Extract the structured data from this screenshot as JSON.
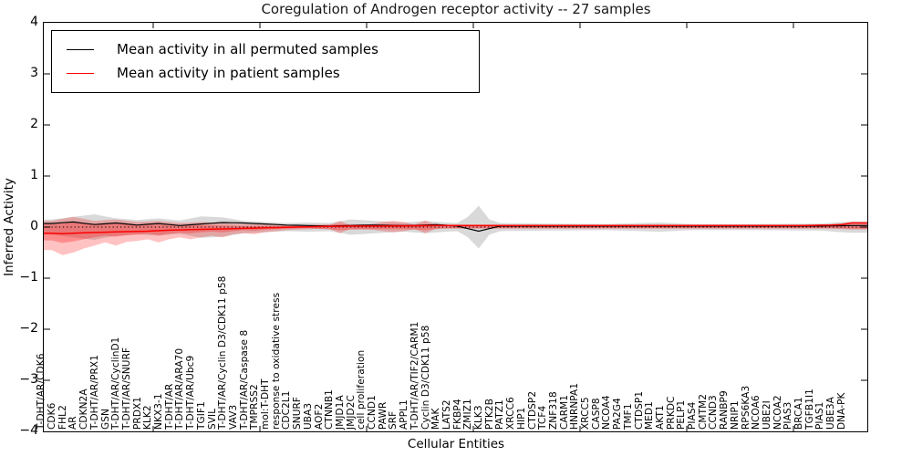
{
  "colors": {
    "permuted_line": "#000000",
    "patient_line": "#ff0000",
    "permuted_band": "rgba(0,0,0,0.15)",
    "patient_band_outer": "rgba(255,0,0,0.24)",
    "patient_band_inner": "rgba(255,0,0,0.28)",
    "zero_line": "#000000",
    "frame": "#000000"
  },
  "chart_data": {
    "type": "line",
    "title": "Coregulation of Androgen receptor activity -- 27 samples",
    "xlabel": "Cellular Entities",
    "ylabel": "Inferred Activity",
    "ylim": [
      -4,
      4
    ],
    "yticks": [
      [
        4,
        "4"
      ],
      [
        3,
        "3"
      ],
      [
        2,
        "2"
      ],
      [
        1,
        "1"
      ],
      [
        0,
        "0"
      ],
      [
        -1,
        "−1"
      ],
      [
        -2,
        "−2"
      ],
      [
        -3,
        "−3"
      ],
      [
        -4,
        "−4"
      ]
    ],
    "x_major_ticks": [
      10,
      20,
      30,
      40,
      50,
      60,
      70
    ],
    "grid": false,
    "legend_position": "upper-left",
    "zero_line_style": "dotted",
    "categories": [
      "T-DHT/AR/CDK6",
      "CDK6",
      "FHL2",
      "AR",
      "CDKN2A",
      "T-DHT/AR/PRX1",
      "GSN",
      "T-DHT/AR/CyclinD1",
      "T-DHT/AR/SNURF",
      "PRDX1",
      "KLK2",
      "NKX3-1",
      "T-DHT/AR",
      "T-DHT/AR/ARA70",
      "T-DHT/AR/Ubc9",
      "TGIF1",
      "SVIL",
      "T-DHT/AR/Cyclin D3/CDK11 p58",
      "VAV3",
      "T-DHT/AR/Caspase 8",
      "TMPRSS2",
      "mol:T-DHT",
      "response to oxidative stress",
      "CDC2L1",
      "SNURF",
      "UBA3",
      "AOF2",
      "CTNNB1",
      "JMJD1A",
      "JMJD2C",
      "cell proliferation",
      "CCND1",
      "PAWR",
      "SRF",
      "APPL1",
      "T-DHT/AR/TIF2/CARM1",
      "Cyclin D3/CDK11 p58",
      "MAK",
      "LATS2",
      "FKBP4",
      "ZMIZ1",
      "KLK3",
      "PTK2B",
      "PATZ1",
      "XRCC6",
      "HIP1",
      "CTDSP2",
      "TCF4",
      "ZNF318",
      "CARM1",
      "HNRNPA1",
      "XRCC5",
      "CASP8",
      "NCOA4",
      "PA2G4",
      "TMF1",
      "CTDSP1",
      "MED1",
      "AKT1",
      "PRKDC",
      "PELP1",
      "PIAS4",
      "CMTM2",
      "CCND3",
      "RANBP9",
      "NRIP1",
      "RPS6KA3",
      "NCOA6",
      "UBE2I",
      "NCOA2",
      "PIAS3",
      "BRCA1",
      "TGFB1I1",
      "PIAS1",
      "UBE3A",
      "DNA-PK"
    ],
    "series": [
      {
        "name": "Mean activity in all permuted samples",
        "color": "#000000",
        "width": 1.2,
        "keypoints": [
          [
            0,
            0.07
          ],
          [
            2,
            0.1
          ],
          [
            4,
            0.05
          ],
          [
            6,
            0.08
          ],
          [
            8,
            0.04
          ],
          [
            10,
            0.07
          ],
          [
            12,
            0.03
          ],
          [
            14,
            0.06
          ],
          [
            16,
            0.09
          ],
          [
            18,
            0.08
          ],
          [
            20,
            0.06
          ],
          [
            22,
            0.04
          ],
          [
            24,
            0.03
          ],
          [
            26,
            0.02
          ],
          [
            28,
            0.03
          ],
          [
            30,
            0.04
          ],
          [
            32,
            0.03
          ],
          [
            34,
            0.03
          ],
          [
            36,
            0.05
          ],
          [
            38,
            0.02
          ],
          [
            39,
            -0.03
          ],
          [
            40,
            -0.08
          ],
          [
            41,
            -0.03
          ],
          [
            42,
            0.02
          ],
          [
            48,
            0.02
          ],
          [
            54,
            0.02
          ],
          [
            60,
            0.02
          ],
          [
            66,
            0.02
          ],
          [
            72,
            0.02
          ],
          [
            75,
            0.03
          ]
        ]
      },
      {
        "name": "Mean activity in patient samples",
        "color": "#ff0000",
        "width": 1.5,
        "keypoints": [
          [
            0,
            -0.12
          ],
          [
            1,
            -0.13
          ],
          [
            3,
            -0.11
          ],
          [
            5,
            -0.1
          ],
          [
            7,
            -0.09
          ],
          [
            9,
            -0.08
          ],
          [
            11,
            -0.06
          ],
          [
            13,
            -0.05
          ],
          [
            15,
            -0.04
          ],
          [
            17,
            -0.03
          ],
          [
            19,
            -0.02
          ],
          [
            21,
            -0.01
          ],
          [
            23,
            0.0
          ],
          [
            25,
            0.01
          ],
          [
            28,
            0.02
          ],
          [
            32,
            0.02
          ],
          [
            36,
            0.03
          ],
          [
            40,
            0.03
          ],
          [
            45,
            0.03
          ],
          [
            50,
            0.03
          ],
          [
            55,
            0.03
          ],
          [
            60,
            0.03
          ],
          [
            65,
            0.03
          ],
          [
            70,
            0.03
          ],
          [
            73,
            0.04
          ],
          [
            74,
            0.05
          ],
          [
            75,
            0.08
          ]
        ]
      }
    ],
    "bands": [
      {
        "name": "permuted-samples-spread",
        "color": "rgba(0,0,0,0.15)",
        "upper": [
          [
            0,
            0.15
          ],
          [
            2,
            0.2
          ],
          [
            4,
            0.25
          ],
          [
            6,
            0.17
          ],
          [
            8,
            0.14
          ],
          [
            10,
            0.17
          ],
          [
            12,
            0.13
          ],
          [
            14,
            0.21
          ],
          [
            16,
            0.19
          ],
          [
            18,
            0.12
          ],
          [
            20,
            0.1
          ],
          [
            22,
            0.08
          ],
          [
            24,
            0.09
          ],
          [
            26,
            0.08
          ],
          [
            28,
            0.15
          ],
          [
            29,
            0.14
          ],
          [
            31,
            0.11
          ],
          [
            33,
            0.09
          ],
          [
            35,
            0.12
          ],
          [
            37,
            0.09
          ],
          [
            38,
            0.08
          ],
          [
            39,
            0.2
          ],
          [
            40,
            0.42
          ],
          [
            41,
            0.15
          ],
          [
            42,
            0.08
          ],
          [
            46,
            0.07
          ],
          [
            52,
            0.06
          ],
          [
            57,
            0.09
          ],
          [
            60,
            0.06
          ],
          [
            66,
            0.06
          ],
          [
            72,
            0.07
          ],
          [
            74,
            0.1
          ],
          [
            75,
            0.11
          ]
        ],
        "lower": [
          [
            0,
            -0.15
          ],
          [
            2,
            -0.2
          ],
          [
            4,
            -0.25
          ],
          [
            6,
            -0.17
          ],
          [
            8,
            -0.14
          ],
          [
            10,
            -0.17
          ],
          [
            12,
            -0.13
          ],
          [
            14,
            -0.21
          ],
          [
            16,
            -0.19
          ],
          [
            18,
            -0.12
          ],
          [
            20,
            -0.1
          ],
          [
            22,
            -0.08
          ],
          [
            24,
            -0.09
          ],
          [
            26,
            -0.08
          ],
          [
            28,
            -0.15
          ],
          [
            29,
            -0.14
          ],
          [
            31,
            -0.11
          ],
          [
            33,
            -0.09
          ],
          [
            35,
            -0.12
          ],
          [
            37,
            -0.09
          ],
          [
            38,
            -0.08
          ],
          [
            39,
            -0.2
          ],
          [
            40,
            -0.42
          ],
          [
            41,
            -0.15
          ],
          [
            42,
            -0.08
          ],
          [
            46,
            -0.07
          ],
          [
            52,
            -0.06
          ],
          [
            57,
            -0.09
          ],
          [
            60,
            -0.06
          ],
          [
            66,
            -0.06
          ],
          [
            72,
            -0.07
          ],
          [
            74,
            -0.1
          ],
          [
            75,
            -0.11
          ]
        ]
      },
      {
        "name": "patient-samples-spread-outer",
        "color": "rgba(255,0,0,0.24)",
        "upper": [
          [
            0,
            0.12
          ],
          [
            2,
            0.2
          ],
          [
            4,
            0.12
          ],
          [
            6,
            0.15
          ],
          [
            8,
            0.1
          ],
          [
            10,
            0.12
          ],
          [
            12,
            0.08
          ],
          [
            14,
            0.1
          ],
          [
            16,
            0.08
          ],
          [
            18,
            0.06
          ],
          [
            20,
            0.05
          ],
          [
            22,
            0.04
          ],
          [
            24,
            0.03
          ],
          [
            26,
            0.03
          ],
          [
            27,
            0.12
          ],
          [
            28,
            0.03
          ],
          [
            30,
            0.06
          ],
          [
            31,
            0.1
          ],
          [
            32,
            0.12
          ],
          [
            33,
            0.1
          ],
          [
            34,
            0.05
          ],
          [
            35,
            0.13
          ],
          [
            36,
            0.04
          ],
          [
            38,
            0.04
          ],
          [
            42,
            0.04
          ],
          [
            48,
            0.04
          ],
          [
            54,
            0.04
          ],
          [
            60,
            0.04
          ],
          [
            66,
            0.04
          ],
          [
            72,
            0.04
          ],
          [
            73,
            0.05
          ],
          [
            74,
            0.07
          ],
          [
            75,
            0.1
          ]
        ],
        "lower": [
          [
            0,
            -0.45
          ],
          [
            1,
            -0.55
          ],
          [
            2,
            -0.5
          ],
          [
            3,
            -0.42
          ],
          [
            4,
            -0.36
          ],
          [
            5,
            -0.3
          ],
          [
            6,
            -0.36
          ],
          [
            7,
            -0.29
          ],
          [
            8,
            -0.27
          ],
          [
            9,
            -0.24
          ],
          [
            10,
            -0.3
          ],
          [
            11,
            -0.24
          ],
          [
            12,
            -0.2
          ],
          [
            13,
            -0.24
          ],
          [
            14,
            -0.2
          ],
          [
            15,
            -0.17
          ],
          [
            16,
            -0.2
          ],
          [
            17,
            -0.14
          ],
          [
            18,
            -0.12
          ],
          [
            19,
            -0.14
          ],
          [
            20,
            -0.1
          ],
          [
            21,
            -0.08
          ],
          [
            22,
            -0.06
          ],
          [
            23,
            -0.05
          ],
          [
            24,
            -0.04
          ],
          [
            26,
            -0.03
          ],
          [
            27,
            -0.12
          ],
          [
            28,
            -0.03
          ],
          [
            30,
            -0.05
          ],
          [
            31,
            -0.08
          ],
          [
            32,
            -0.1
          ],
          [
            33,
            -0.08
          ],
          [
            34,
            -0.04
          ],
          [
            35,
            -0.12
          ],
          [
            36,
            -0.03
          ],
          [
            40,
            -0.03
          ],
          [
            46,
            -0.03
          ],
          [
            52,
            -0.03
          ],
          [
            58,
            -0.03
          ],
          [
            64,
            -0.03
          ],
          [
            70,
            -0.03
          ],
          [
            73,
            -0.03
          ],
          [
            74,
            -0.04
          ],
          [
            75,
            -0.05
          ]
        ]
      },
      {
        "name": "patient-samples-spread-inner",
        "color": "rgba(255,0,0,0.28)",
        "upper": [
          [
            0,
            0.05
          ],
          [
            2,
            0.09
          ],
          [
            4,
            0.05
          ],
          [
            6,
            0.07
          ],
          [
            8,
            0.04
          ],
          [
            10,
            0.05
          ],
          [
            12,
            0.03
          ],
          [
            14,
            0.04
          ],
          [
            16,
            0.03
          ],
          [
            18,
            0.02
          ],
          [
            21,
            0.02
          ],
          [
            27,
            0.06
          ],
          [
            31,
            0.05
          ],
          [
            32,
            0.06
          ],
          [
            33,
            0.05
          ],
          [
            35,
            0.06
          ],
          [
            37,
            0.02
          ],
          [
            45,
            0.02
          ],
          [
            60,
            0.02
          ],
          [
            72,
            0.02
          ],
          [
            75,
            0.05
          ]
        ],
        "lower": [
          [
            0,
            -0.26
          ],
          [
            1,
            -0.31
          ],
          [
            2,
            -0.28
          ],
          [
            3,
            -0.24
          ],
          [
            4,
            -0.2
          ],
          [
            5,
            -0.17
          ],
          [
            6,
            -0.19
          ],
          [
            7,
            -0.16
          ],
          [
            8,
            -0.15
          ],
          [
            9,
            -0.13
          ],
          [
            10,
            -0.16
          ],
          [
            11,
            -0.13
          ],
          [
            12,
            -0.11
          ],
          [
            13,
            -0.12
          ],
          [
            14,
            -0.1
          ],
          [
            15,
            -0.09
          ],
          [
            16,
            -0.1
          ],
          [
            17,
            -0.08
          ],
          [
            18,
            -0.06
          ],
          [
            19,
            -0.07
          ],
          [
            20,
            -0.05
          ],
          [
            21,
            -0.04
          ],
          [
            22,
            -0.03
          ],
          [
            24,
            -0.02
          ],
          [
            27,
            -0.06
          ],
          [
            31,
            -0.04
          ],
          [
            33,
            -0.04
          ],
          [
            35,
            -0.06
          ],
          [
            37,
            -0.02
          ],
          [
            45,
            -0.02
          ],
          [
            60,
            -0.02
          ],
          [
            72,
            -0.02
          ],
          [
            75,
            -0.03
          ]
        ]
      }
    ]
  }
}
